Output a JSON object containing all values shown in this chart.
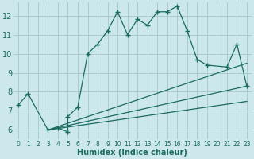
{
  "xlabel": "Humidex (Indice chaleur)",
  "bg_color": "#cce8ec",
  "grid_color": "#aacccc",
  "line_color": "#1a6b60",
  "xlim": [
    -0.5,
    23.5
  ],
  "ylim": [
    5.5,
    12.7
  ],
  "xticks": [
    0,
    1,
    2,
    3,
    4,
    5,
    6,
    7,
    8,
    9,
    10,
    11,
    12,
    13,
    14,
    15,
    16,
    17,
    18,
    19,
    20,
    21,
    22,
    23
  ],
  "yticks": [
    6,
    7,
    8,
    9,
    10,
    11,
    12
  ],
  "series": [
    [
      0,
      7.3
    ],
    [
      1,
      7.9
    ],
    [
      3,
      6.0
    ],
    [
      4,
      6.1
    ],
    [
      5,
      5.9
    ],
    [
      5,
      6.7
    ],
    [
      6,
      7.2
    ],
    [
      7,
      10.0
    ],
    [
      8,
      10.5
    ],
    [
      9,
      11.2
    ],
    [
      10,
      12.2
    ],
    [
      11,
      11.0
    ],
    [
      12,
      11.8
    ],
    [
      13,
      11.5
    ],
    [
      14,
      12.2
    ],
    [
      15,
      12.2
    ],
    [
      16,
      12.5
    ],
    [
      17,
      11.2
    ],
    [
      18,
      9.7
    ],
    [
      19,
      9.4
    ],
    [
      21,
      9.3
    ],
    [
      22,
      10.5
    ],
    [
      23,
      8.3
    ]
  ],
  "linear_lines": [
    {
      "x": [
        3,
        23
      ],
      "y": [
        6.0,
        9.5
      ]
    },
    {
      "x": [
        3,
        23
      ],
      "y": [
        6.0,
        8.3
      ]
    },
    {
      "x": [
        3,
        23
      ],
      "y": [
        6.0,
        7.5
      ]
    }
  ]
}
